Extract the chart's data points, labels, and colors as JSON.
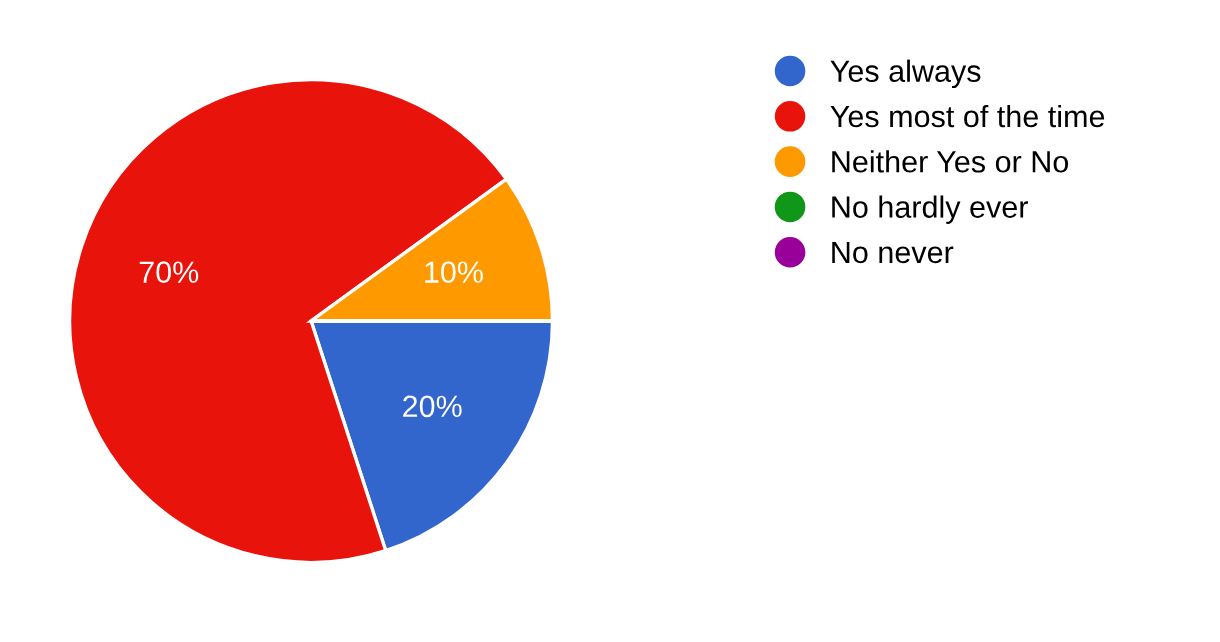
{
  "chart_data": {
    "type": "pie",
    "categories": [
      "Yes always",
      "Yes most of the time",
      "Neither Yes or No",
      "No hardly ever",
      "No never"
    ],
    "values": [
      20,
      70,
      10,
      0,
      0
    ],
    "value_labels": [
      "20%",
      "70%",
      "10%",
      null,
      null
    ],
    "colors": [
      "#3366cc",
      "#e8140c",
      "#ff9900",
      "#109618",
      "#990099"
    ],
    "legend": "right"
  }
}
